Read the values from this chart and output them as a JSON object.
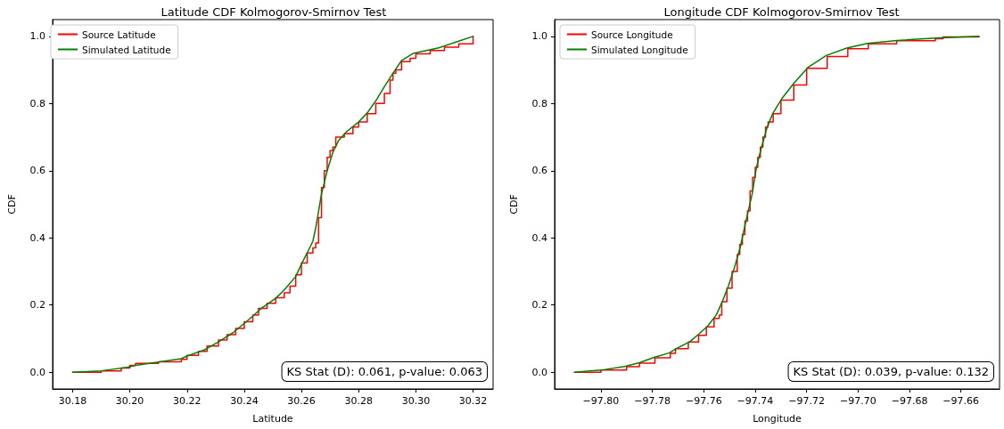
{
  "chart_data": [
    {
      "type": "line",
      "title": "Latitude CDF Kolmogorov-Smirnov Test",
      "xlabel": "Latitude",
      "ylabel": "CDF",
      "legend": "top left",
      "grid": false,
      "marker": "none",
      "line_style": "solid",
      "annotations": [
        "KS Stat (D): 0.061, p-value: 0.063"
      ],
      "xlim": [
        30.173,
        30.327
      ],
      "ylim": [
        -0.05,
        1.05
      ],
      "xticks": [
        {
          "value": 30.18,
          "label": "30.18"
        },
        {
          "value": 30.2,
          "label": "30.20"
        },
        {
          "value": 30.22,
          "label": "30.22"
        },
        {
          "value": 30.24,
          "label": "30.24"
        },
        {
          "value": 30.26,
          "label": "30.26"
        },
        {
          "value": 30.28,
          "label": "30.28"
        },
        {
          "value": 30.3,
          "label": "30.30"
        },
        {
          "value": 30.32,
          "label": "30.32"
        }
      ],
      "yticks": [
        {
          "value": 0,
          "label": "0.0"
        },
        {
          "value": 0.2,
          "label": "0.2"
        },
        {
          "value": 0.4,
          "label": "0.4"
        },
        {
          "value": 0.6,
          "label": "0.6"
        },
        {
          "value": 0.8,
          "label": "0.8"
        },
        {
          "value": 1,
          "label": "1.0"
        }
      ],
      "series": [
        {
          "name": "Source Latitude",
          "type": "step",
          "color": "#ff0000",
          "x": [
            30.18,
            30.19,
            30.197,
            30.2,
            30.202,
            30.21,
            30.218,
            30.22,
            30.224,
            30.227,
            30.231,
            30.234,
            30.237,
            30.24,
            30.243,
            30.245,
            30.248,
            30.251,
            30.254,
            30.256,
            30.258,
            30.26,
            30.262,
            30.264,
            30.265,
            30.266,
            30.267,
            30.268,
            30.269,
            30.27,
            30.271,
            30.272,
            30.275,
            30.278,
            30.28,
            30.283,
            30.286,
            30.289,
            30.291,
            30.292,
            30.293,
            30.295,
            30.298,
            30.3,
            30.305,
            30.31,
            30.315,
            30.32
          ],
          "values": [
            0,
            0.004,
            0.012,
            0.02,
            0.026,
            0.031,
            0.038,
            0.05,
            0.062,
            0.078,
            0.096,
            0.112,
            0.13,
            0.15,
            0.17,
            0.19,
            0.205,
            0.222,
            0.236,
            0.256,
            0.29,
            0.325,
            0.355,
            0.37,
            0.385,
            0.46,
            0.55,
            0.6,
            0.64,
            0.66,
            0.67,
            0.7,
            0.71,
            0.73,
            0.745,
            0.77,
            0.8,
            0.83,
            0.87,
            0.89,
            0.9,
            0.925,
            0.935,
            0.948,
            0.958,
            0.968,
            0.978,
            1.0
          ]
        },
        {
          "name": "Simulated Latitude",
          "color": "#008000",
          "x": [
            30.18,
            30.19,
            30.199,
            30.202,
            30.21,
            30.218,
            30.22,
            30.226,
            30.231,
            30.236,
            30.241,
            30.246,
            30.251,
            30.254,
            30.258,
            30.26,
            30.262,
            30.264,
            30.265,
            30.266,
            30.267,
            30.269,
            30.271,
            30.273,
            30.276,
            30.28,
            30.283,
            30.286,
            30.289,
            30.292,
            30.295,
            30.299,
            30.308,
            30.32
          ],
          "values": [
            0,
            0.004,
            0.014,
            0.02,
            0.03,
            0.04,
            0.048,
            0.066,
            0.09,
            0.117,
            0.152,
            0.19,
            0.22,
            0.245,
            0.285,
            0.322,
            0.355,
            0.39,
            0.43,
            0.48,
            0.53,
            0.6,
            0.655,
            0.69,
            0.718,
            0.745,
            0.772,
            0.808,
            0.85,
            0.89,
            0.928,
            0.949,
            0.966,
            1.0
          ]
        }
      ]
    },
    {
      "type": "line",
      "title": "Longitude CDF Kolmogorov-Smirnov Test",
      "xlabel": "Longitude",
      "ylabel": "CDF",
      "legend": "top left",
      "grid": false,
      "marker": "none",
      "line_style": "solid",
      "annotations": [
        "KS Stat (D): 0.039, p-value: 0.132"
      ],
      "xlim": [
        -97.818,
        -97.645
      ],
      "ylim": [
        -0.05,
        1.05
      ],
      "xticks": [
        {
          "value": -97.8,
          "label": "−97.80"
        },
        {
          "value": -97.78,
          "label": "−97.78"
        },
        {
          "value": -97.76,
          "label": "−97.76"
        },
        {
          "value": -97.74,
          "label": "−97.74"
        },
        {
          "value": -97.72,
          "label": "−97.72"
        },
        {
          "value": -97.7,
          "label": "−97.70"
        },
        {
          "value": -97.68,
          "label": "−97.68"
        },
        {
          "value": -97.66,
          "label": "−97.66"
        }
      ],
      "yticks": [
        {
          "value": 0,
          "label": "0.0"
        },
        {
          "value": 0.2,
          "label": "0.2"
        },
        {
          "value": 0.4,
          "label": "0.4"
        },
        {
          "value": 0.6,
          "label": "0.6"
        },
        {
          "value": 0.8,
          "label": "0.8"
        },
        {
          "value": 1,
          "label": "1.0"
        }
      ],
      "series": [
        {
          "name": "Source Longitude",
          "type": "step",
          "color": "#ff0000",
          "x": [
            -97.81,
            -97.8,
            -97.79,
            -97.785,
            -97.779,
            -97.773,
            -97.771,
            -97.766,
            -97.762,
            -97.759,
            -97.756,
            -97.754,
            -97.753,
            -97.751,
            -97.749,
            -97.747,
            -97.746,
            -97.745,
            -97.744,
            -97.743,
            -97.742,
            -97.741,
            -97.74,
            -97.739,
            -97.738,
            -97.737,
            -97.736,
            -97.735,
            -97.733,
            -97.73,
            -97.725,
            -97.72,
            -97.712,
            -97.704,
            -97.696,
            -97.685,
            -97.67,
            -97.667,
            -97.653
          ],
          "values": [
            0,
            0.006,
            0.016,
            0.027,
            0.043,
            0.056,
            0.07,
            0.09,
            0.11,
            0.135,
            0.16,
            0.17,
            0.21,
            0.25,
            0.3,
            0.35,
            0.38,
            0.41,
            0.45,
            0.48,
            0.54,
            0.58,
            0.61,
            0.64,
            0.67,
            0.7,
            0.73,
            0.745,
            0.77,
            0.81,
            0.855,
            0.905,
            0.94,
            0.963,
            0.978,
            0.987,
            0.993,
            0.998,
            1.0
          ]
        },
        {
          "name": "Simulated Longitude",
          "color": "#008000",
          "x": [
            -97.8104,
            -97.8,
            -97.7908,
            -97.785,
            -97.7793,
            -97.7735,
            -97.77,
            -97.7654,
            -97.762,
            -97.7585,
            -97.7551,
            -97.7528,
            -97.7505,
            -97.7482,
            -97.7459,
            -97.7436,
            -97.7412,
            -97.7395,
            -97.7378,
            -97.7355,
            -97.7332,
            -97.7297,
            -97.7251,
            -97.7194,
            -97.7124,
            -97.7044,
            -97.6963,
            -97.6848,
            -97.6698,
            -97.6531
          ],
          "values": [
            0,
            0.006,
            0.017,
            0.028,
            0.044,
            0.057,
            0.073,
            0.091,
            0.113,
            0.137,
            0.171,
            0.21,
            0.255,
            0.308,
            0.37,
            0.45,
            0.53,
            0.61,
            0.663,
            0.726,
            0.77,
            0.814,
            0.859,
            0.908,
            0.943,
            0.965,
            0.979,
            0.988,
            0.995,
            1.0
          ]
        }
      ]
    }
  ]
}
